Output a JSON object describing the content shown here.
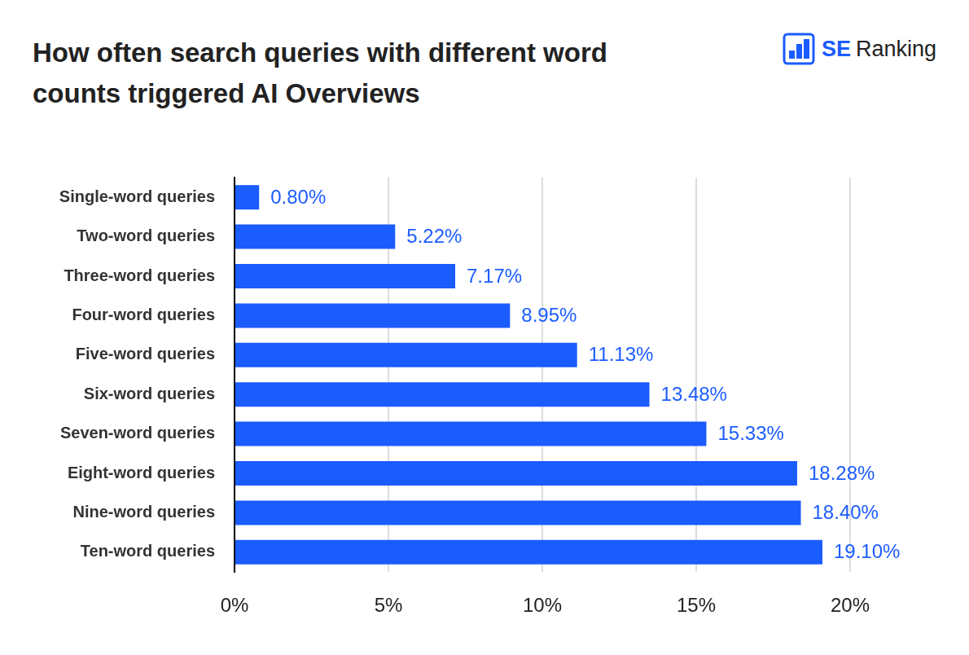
{
  "chart_data": {
    "type": "bar",
    "orientation": "horizontal",
    "title": "How often search queries with different word counts triggered AI Overviews",
    "annotations": [
      "SE Ranking"
    ],
    "categories": [
      "Single-word queries",
      "Two-word queries",
      "Three-word queries",
      "Four-word queries",
      "Five-word queries",
      "Six-word queries",
      "Seven-word queries",
      "Eight-word queries",
      "Nine-word queries",
      "Ten-word queries"
    ],
    "values": [
      0.8,
      5.22,
      7.17,
      8.95,
      11.13,
      13.48,
      15.33,
      18.28,
      18.4,
      19.1
    ],
    "value_labels": [
      "0.80%",
      "5.22%",
      "7.17%",
      "8.95%",
      "11.13%",
      "13.48%",
      "15.33%",
      "18.28%",
      "18.40%",
      "19.10%"
    ],
    "color": "#1b5cff",
    "xlim": [
      0,
      20
    ],
    "xticks": [
      {
        "value": 0,
        "label": "0%"
      },
      {
        "value": 5,
        "label": "5%"
      },
      {
        "value": 10,
        "label": "10%"
      },
      {
        "value": 15,
        "label": "15%"
      },
      {
        "value": 20,
        "label": "20%"
      }
    ],
    "grid": true,
    "data_labels": true
  }
}
